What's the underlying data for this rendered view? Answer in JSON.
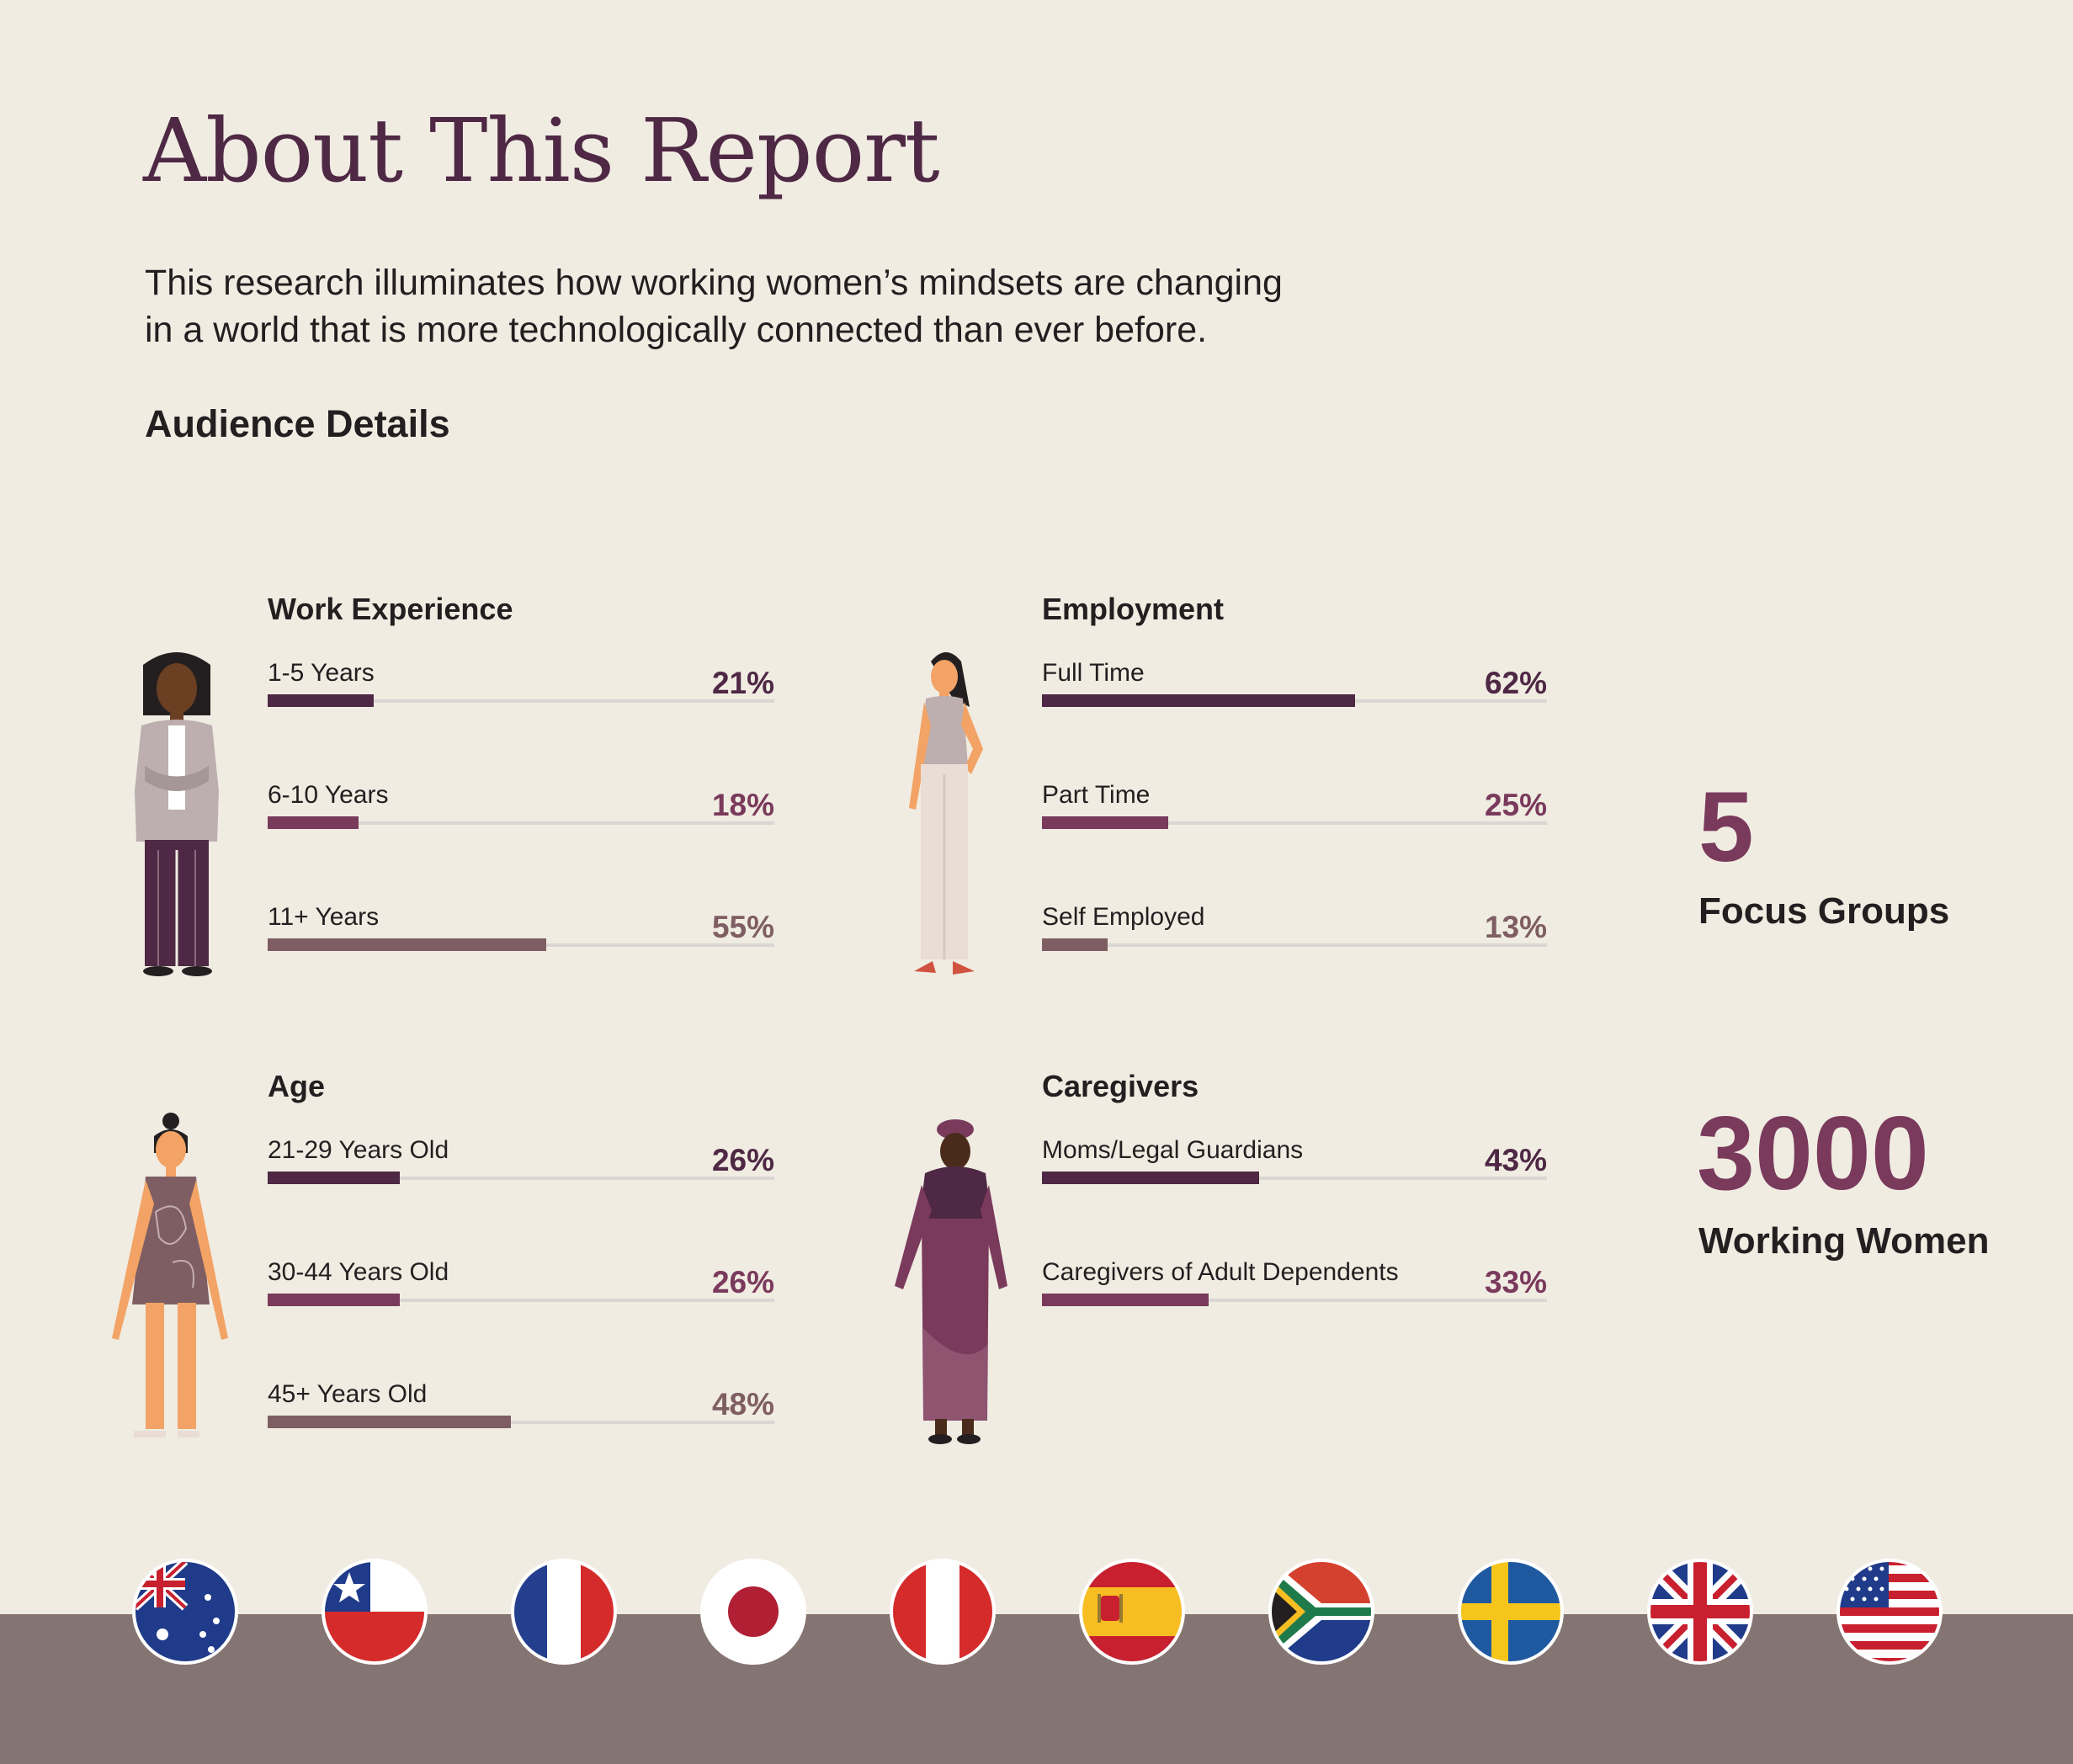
{
  "header": {
    "title": "About This Report",
    "intro_line1": "This research illuminates how working women’s mindsets are changing",
    "intro_line2": "in a world that is more technologically connected than ever before.",
    "section": "Audience Details"
  },
  "colors": {
    "dark": "#4e2844",
    "mid": "#7a3a5c",
    "light": "#7f5e63",
    "ground": "#857572",
    "background": "#f0ece2"
  },
  "chart_data": [
    {
      "type": "bar",
      "title": "Work Experience",
      "categories": [
        "1-5 Years",
        "6-10 Years",
        "11+ Years"
      ],
      "values": [
        21,
        18,
        55
      ],
      "labels": [
        "21%",
        "18%",
        "55%"
      ]
    },
    {
      "type": "bar",
      "title": "Employment",
      "categories": [
        "Full Time",
        "Part Time",
        "Self Employed"
      ],
      "values": [
        62,
        25,
        13
      ],
      "labels": [
        "62%",
        "25%",
        "13%"
      ]
    },
    {
      "type": "bar",
      "title": "Age",
      "categories": [
        "21-29 Years Old",
        "30-44 Years Old",
        "45+ Years Old"
      ],
      "values": [
        26,
        26,
        48
      ],
      "labels": [
        "26%",
        "26%",
        "48%"
      ]
    },
    {
      "type": "bar",
      "title": "Caregivers",
      "categories": [
        "Moms/Legal Guardians",
        "Caregivers of Adult Dependents"
      ],
      "values": [
        43,
        33
      ],
      "labels": [
        "43%",
        "33%"
      ]
    }
  ],
  "stats": [
    {
      "value": "5",
      "label": "Focus Groups"
    },
    {
      "value": "3000",
      "label": "Working Women"
    }
  ],
  "flags": [
    "australia-flag-icon",
    "chile-flag-icon",
    "france-flag-icon",
    "japan-flag-icon",
    "peru-flag-icon",
    "spain-flag-icon",
    "south-africa-flag-icon",
    "sweden-flag-icon",
    "united-kingdom-flag-icon",
    "united-states-flag-icon"
  ]
}
